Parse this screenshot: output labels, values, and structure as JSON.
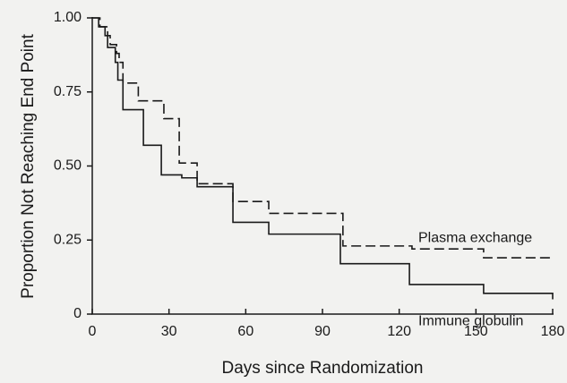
{
  "chart_data": {
    "type": "step",
    "xlabel": "Days since Randomization",
    "ylabel": "Proportion Not Reaching End Point",
    "xlim": [
      0,
      180
    ],
    "xticks": [
      0,
      30,
      60,
      90,
      120,
      150,
      180
    ],
    "ylim": [
      0,
      1
    ],
    "yticks": [
      0,
      {
        "value": 0.25,
        "label": "0.25"
      },
      {
        "value": 0.5,
        "label": "0.50"
      },
      {
        "value": 0.75,
        "label": "0.75"
      },
      {
        "value": 1,
        "label": "1.00"
      }
    ],
    "series": [
      {
        "name": "Plasma exchange",
        "color": "#1a1a1a",
        "line_style": "dashed",
        "x": [
          0,
          3,
          6,
          7,
          9.5,
          10.5,
          12,
          18,
          28,
          34,
          41,
          55,
          69,
          98,
          125,
          153,
          180
        ],
        "values": [
          1,
          0.97,
          0.94,
          0.91,
          0.88,
          0.85,
          0.78,
          0.72,
          0.66,
          0.51,
          0.44,
          0.38,
          0.34,
          0.23,
          0.22,
          0.19,
          0.19
        ]
      },
      {
        "name": "Immune globulin",
        "color": "#1a1a1a",
        "line_style": "solid",
        "x": [
          0,
          2.5,
          5,
          6,
          9,
          10,
          12,
          20,
          27,
          35,
          41,
          55,
          69,
          97,
          124,
          153,
          180
        ],
        "values": [
          1,
          0.97,
          0.94,
          0.9,
          0.85,
          0.79,
          0.69,
          0.57,
          0.47,
          0.46,
          0.43,
          0.31,
          0.27,
          0.17,
          0.1,
          0.07,
          0.05
        ]
      }
    ]
  }
}
